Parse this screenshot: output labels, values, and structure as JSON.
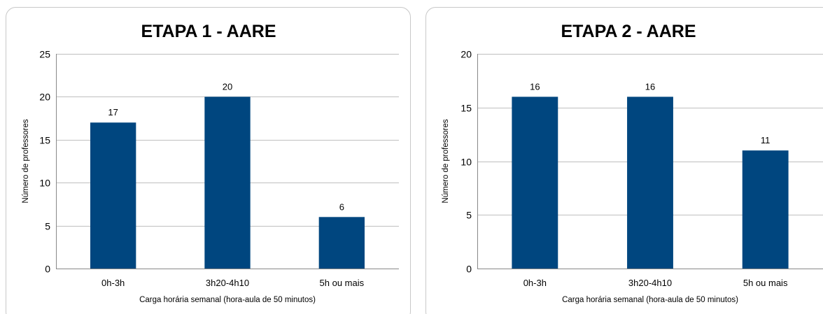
{
  "chart_data": [
    {
      "type": "bar",
      "title": "ETAPA 1 - AARE",
      "xlabel": "Carga horária semanal (hora-aula de 50 minutos)",
      "ylabel": "Número de professores",
      "categories": [
        "0h-3h",
        "3h20-4h10",
        "5h ou mais"
      ],
      "values": [
        17,
        20,
        6
      ],
      "ylim": [
        0,
        25
      ],
      "yticks": [
        0,
        5,
        10,
        15,
        20,
        25
      ],
      "grid": true,
      "data_labels": true,
      "bar_color": "#00467f"
    },
    {
      "type": "bar",
      "title": "ETAPA 2 - AARE",
      "xlabel": "Carga horária semanal (hora-aula de 50 minutos)",
      "ylabel": "Número de professores",
      "categories": [
        "0h-3h",
        "3h20-4h10",
        "5h ou mais"
      ],
      "values": [
        16,
        16,
        11
      ],
      "ylim": [
        0,
        20
      ],
      "yticks": [
        0,
        5,
        10,
        15,
        20
      ],
      "grid": true,
      "data_labels": true,
      "bar_color": "#00467f"
    }
  ]
}
